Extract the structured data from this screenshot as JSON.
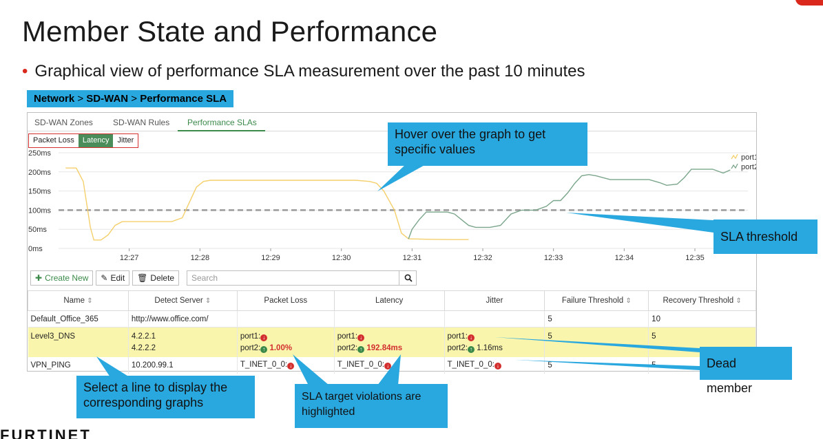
{
  "slide": {
    "title": "Member State and Performance",
    "bullet": "Graphical view of performance SLA measurement over the past 10 minutes",
    "nav": {
      "a": "Network",
      "b": "SD-WAN",
      "c": "Performance SLA",
      "sep": " > "
    },
    "logo": "FURTINET"
  },
  "tabs": [
    "SD-WAN Zones",
    "SD-WAN Rules",
    "Performance SLAs"
  ],
  "metric_toggle": [
    "Packet Loss",
    "Latency",
    "Jitter"
  ],
  "toolbar": {
    "create": "Create New",
    "edit": "Edit",
    "delete": "Delete",
    "search_placeholder": "Search"
  },
  "table": {
    "headers": [
      "Name",
      "Detect Server",
      "Packet Loss",
      "Latency",
      "Jitter",
      "Failure Threshold",
      "Recovery Threshold"
    ],
    "rows": [
      {
        "name": "Default_Office_365",
        "server": "http://www.office.com/",
        "failure": "5",
        "recovery": "10"
      },
      {
        "name": "Level3_DNS",
        "server1": "4.2.2.1",
        "server2": "4.2.2.2",
        "loss1": "port1:",
        "loss2": "port2:",
        "loss2_val": "1.00%",
        "lat1": "port1:",
        "lat2": "port2:",
        "lat2_val": "192.84ms",
        "jit1": "port1:",
        "jit2": "port2:",
        "jit2_val": "1.16ms",
        "failure": "5",
        "recovery": "5"
      },
      {
        "name": "VPN_PING",
        "server": "10.200.99.1",
        "loss": "T_INET_0_0:",
        "lat": "T_INET_0_0:",
        "jit": "T_INET_0_0:",
        "failure": "5",
        "recovery": "5"
      }
    ]
  },
  "callouts": {
    "hover": "Hover over the graph to get specific values",
    "sla": "SLA threshold",
    "dead": "Dead member",
    "select": "Select a line to display the corresponding graphs",
    "violations": "SLA target violations are highlighted"
  },
  "chart_data": {
    "type": "line",
    "ylabel": "",
    "y_ticks": [
      "0ms",
      "50ms",
      "100ms",
      "150ms",
      "200ms",
      "250ms"
    ],
    "x_ticks": [
      "12:27",
      "12:28",
      "12:29",
      "12:30",
      "12:31",
      "12:32",
      "12:33",
      "12:34",
      "12:35"
    ],
    "ylim": [
      0,
      250
    ],
    "xlim": [
      12.4667,
      12.5958
    ],
    "threshold": 100,
    "legend": [
      "port1",
      "port2"
    ],
    "legend_position": "top-right",
    "colors": {
      "port1": "#f5cf6b",
      "port2": "#7aa58a",
      "threshold": "#999999"
    },
    "series": [
      {
        "name": "port1",
        "points": [
          [
            26.1,
            210
          ],
          [
            26.25,
            210
          ],
          [
            26.35,
            175
          ],
          [
            26.45,
            55
          ],
          [
            26.5,
            22
          ],
          [
            26.6,
            22
          ],
          [
            26.7,
            35
          ],
          [
            26.8,
            60
          ],
          [
            26.9,
            70
          ],
          [
            27.0,
            70
          ],
          [
            27.1,
            70
          ],
          [
            27.3,
            70
          ],
          [
            27.5,
            70
          ],
          [
            27.6,
            70
          ],
          [
            27.75,
            80
          ],
          [
            27.85,
            120
          ],
          [
            27.95,
            160
          ],
          [
            28.05,
            175
          ],
          [
            28.15,
            178
          ],
          [
            28.4,
            178
          ],
          [
            28.8,
            178
          ],
          [
            29.2,
            178
          ],
          [
            29.6,
            178
          ],
          [
            30.2,
            178
          ],
          [
            30.4,
            175
          ],
          [
            30.5,
            170
          ],
          [
            30.6,
            150
          ],
          [
            30.75,
            100
          ],
          [
            30.85,
            40
          ],
          [
            30.95,
            25
          ],
          [
            31.2,
            24
          ],
          [
            31.6,
            23
          ],
          [
            31.8,
            23
          ]
        ]
      },
      {
        "name": "port2",
        "points": [
          [
            30.95,
            25
          ],
          [
            31.0,
            50
          ],
          [
            31.1,
            75
          ],
          [
            31.2,
            95
          ],
          [
            31.3,
            95
          ],
          [
            31.5,
            95
          ],
          [
            31.6,
            90
          ],
          [
            31.7,
            75
          ],
          [
            31.8,
            60
          ],
          [
            31.9,
            55
          ],
          [
            32.1,
            55
          ],
          [
            32.25,
            60
          ],
          [
            32.4,
            90
          ],
          [
            32.55,
            100
          ],
          [
            32.75,
            100
          ],
          [
            32.9,
            110
          ],
          [
            33.0,
            125
          ],
          [
            33.1,
            125
          ],
          [
            33.2,
            145
          ],
          [
            33.3,
            170
          ],
          [
            33.4,
            190
          ],
          [
            33.5,
            193
          ],
          [
            33.6,
            190
          ],
          [
            33.8,
            180
          ],
          [
            34.0,
            180
          ],
          [
            34.2,
            180
          ],
          [
            34.35,
            180
          ],
          [
            34.5,
            172
          ],
          [
            34.6,
            165
          ],
          [
            34.75,
            168
          ],
          [
            34.85,
            185
          ],
          [
            34.95,
            207
          ],
          [
            35.1,
            207
          ],
          [
            35.25,
            207
          ],
          [
            35.4,
            197
          ],
          [
            35.5,
            205
          ]
        ]
      }
    ]
  }
}
